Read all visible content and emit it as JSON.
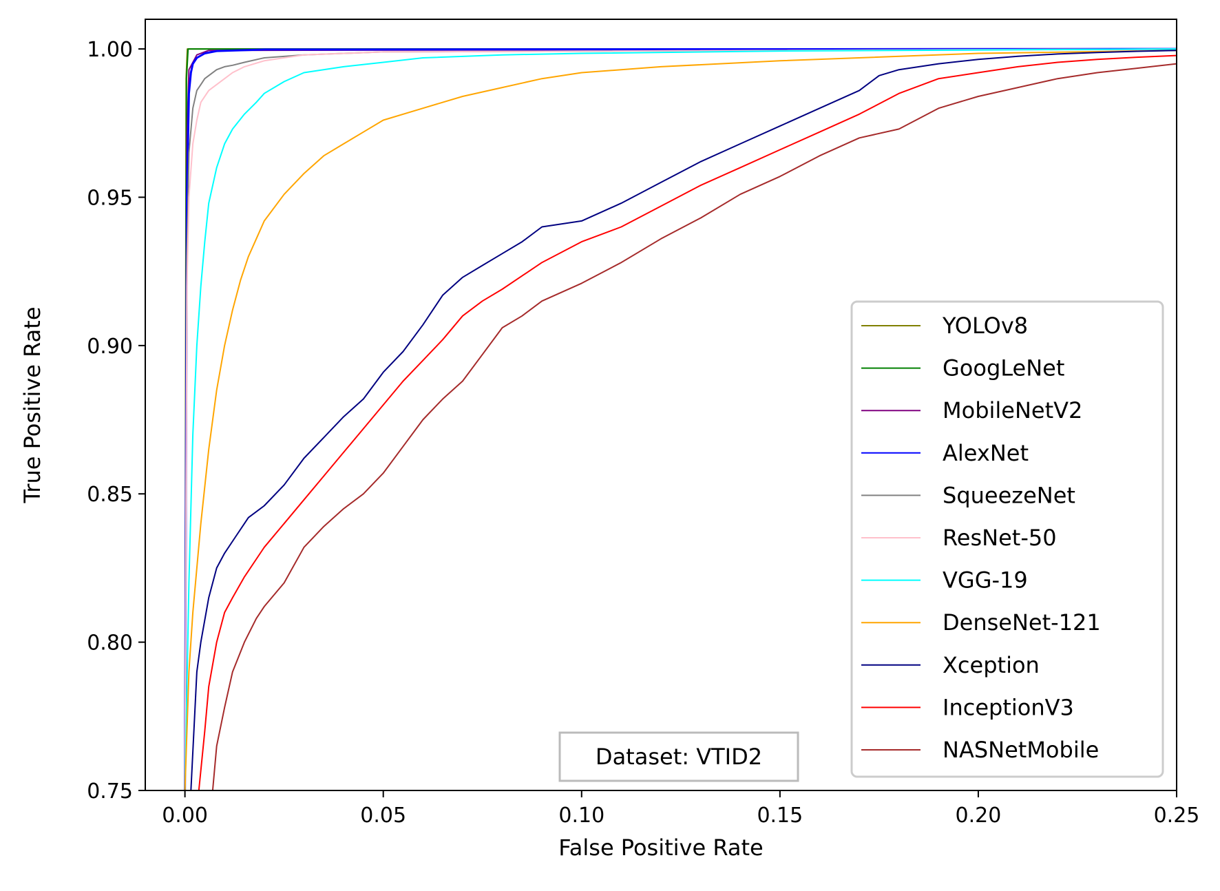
{
  "chart_data": {
    "type": "line",
    "xlabel": "False Positive Rate",
    "ylabel": "True Positive Rate",
    "xlim": [
      -0.01,
      0.25
    ],
    "ylim": [
      0.75,
      1.01
    ],
    "xticks": [
      0.0,
      0.05,
      0.1,
      0.15,
      0.2,
      0.25
    ],
    "xtick_labels": [
      "0.00",
      "0.05",
      "0.10",
      "0.15",
      "0.20",
      "0.25"
    ],
    "yticks": [
      0.75,
      0.8,
      0.85,
      0.9,
      0.95,
      1.0
    ],
    "ytick_labels": [
      "0.75",
      "0.80",
      "0.85",
      "0.90",
      "0.95",
      "1.00"
    ],
    "grid": false,
    "legend_position": "center-right",
    "annotation": "Dataset: VTID2",
    "series": [
      {
        "name": "YOLOv8",
        "color": "#808000",
        "x": [
          0.0,
          0.0003,
          0.0006,
          0.25
        ],
        "y": [
          0.75,
          0.99,
          1.0,
          1.0
        ]
      },
      {
        "name": "GoogLeNet",
        "color": "#008000",
        "x": [
          0.0,
          0.0004,
          0.0008,
          0.25
        ],
        "y": [
          0.75,
          0.99,
          1.0,
          1.0
        ]
      },
      {
        "name": "MobileNetV2",
        "color": "#800080",
        "x": [
          0.0,
          0.0005,
          0.001,
          0.003,
          0.006,
          0.25
        ],
        "y": [
          0.75,
          0.97,
          0.993,
          0.998,
          0.9995,
          1.0
        ]
      },
      {
        "name": "AlexNet",
        "color": "#0000ff",
        "x": [
          0.0,
          0.0005,
          0.001,
          0.0015,
          0.002,
          0.003,
          0.005,
          0.008,
          0.02,
          0.25
        ],
        "y": [
          0.75,
          0.95,
          0.985,
          0.992,
          0.995,
          0.997,
          0.9985,
          0.9993,
          0.9998,
          1.0
        ]
      },
      {
        "name": "SqueezeNet",
        "color": "#808080",
        "x": [
          0.0,
          0.0005,
          0.001,
          0.002,
          0.003,
          0.004,
          0.005,
          0.006,
          0.008,
          0.01,
          0.012,
          0.015,
          0.02,
          0.03,
          0.05,
          0.25
        ],
        "y": [
          0.75,
          0.93,
          0.965,
          0.98,
          0.986,
          0.988,
          0.99,
          0.991,
          0.993,
          0.994,
          0.9945,
          0.9955,
          0.997,
          0.998,
          0.999,
          1.0
        ]
      },
      {
        "name": "ResNet-50",
        "color": "#ffc0cb",
        "x": [
          0.0,
          0.0005,
          0.001,
          0.002,
          0.003,
          0.004,
          0.006,
          0.008,
          0.01,
          0.012,
          0.015,
          0.02,
          0.03,
          0.05,
          0.25
        ],
        "y": [
          0.75,
          0.92,
          0.95,
          0.968,
          0.976,
          0.982,
          0.986,
          0.988,
          0.99,
          0.992,
          0.994,
          0.996,
          0.998,
          0.999,
          1.0
        ]
      },
      {
        "name": "VGG-19",
        "color": "#00ffff",
        "x": [
          0.0,
          0.001,
          0.002,
          0.003,
          0.004,
          0.005,
          0.006,
          0.008,
          0.01,
          0.012,
          0.015,
          0.018,
          0.02,
          0.025,
          0.03,
          0.04,
          0.05,
          0.06,
          0.08,
          0.1,
          0.15,
          0.25
        ],
        "y": [
          0.75,
          0.82,
          0.87,
          0.9,
          0.92,
          0.935,
          0.948,
          0.96,
          0.968,
          0.973,
          0.978,
          0.982,
          0.985,
          0.989,
          0.992,
          0.994,
          0.9955,
          0.997,
          0.998,
          0.9985,
          0.9993,
          1.0
        ]
      },
      {
        "name": "DenseNet-121",
        "color": "#ffa500",
        "x": [
          0.0,
          0.001,
          0.002,
          0.004,
          0.006,
          0.008,
          0.01,
          0.012,
          0.014,
          0.016,
          0.018,
          0.02,
          0.025,
          0.03,
          0.035,
          0.04,
          0.045,
          0.05,
          0.06,
          0.07,
          0.08,
          0.09,
          0.1,
          0.12,
          0.15,
          0.2,
          0.25
        ],
        "y": [
          0.75,
          0.79,
          0.81,
          0.84,
          0.865,
          0.885,
          0.9,
          0.912,
          0.922,
          0.93,
          0.936,
          0.942,
          0.951,
          0.958,
          0.964,
          0.968,
          0.972,
          0.976,
          0.98,
          0.984,
          0.987,
          0.99,
          0.992,
          0.994,
          0.996,
          0.9985,
          0.9995
        ]
      },
      {
        "name": "Xception",
        "color": "#000080",
        "x": [
          0.0015,
          0.003,
          0.004,
          0.006,
          0.008,
          0.01,
          0.013,
          0.016,
          0.02,
          0.025,
          0.03,
          0.035,
          0.04,
          0.045,
          0.05,
          0.055,
          0.06,
          0.065,
          0.07,
          0.075,
          0.08,
          0.085,
          0.09,
          0.1,
          0.11,
          0.12,
          0.13,
          0.14,
          0.15,
          0.16,
          0.17,
          0.175,
          0.18,
          0.19,
          0.2,
          0.21,
          0.22,
          0.23,
          0.24,
          0.25
        ],
        "y": [
          0.75,
          0.79,
          0.8,
          0.815,
          0.825,
          0.83,
          0.836,
          0.842,
          0.846,
          0.853,
          0.862,
          0.869,
          0.876,
          0.882,
          0.891,
          0.898,
          0.907,
          0.917,
          0.923,
          0.927,
          0.931,
          0.935,
          0.94,
          0.942,
          0.948,
          0.955,
          0.962,
          0.968,
          0.974,
          0.98,
          0.986,
          0.991,
          0.993,
          0.995,
          0.9965,
          0.9975,
          0.9983,
          0.9988,
          0.9992,
          0.9995
        ]
      },
      {
        "name": "InceptionV3",
        "color": "#ff0000",
        "x": [
          0.0035,
          0.005,
          0.006,
          0.008,
          0.01,
          0.012,
          0.015,
          0.018,
          0.02,
          0.025,
          0.03,
          0.035,
          0.04,
          0.045,
          0.05,
          0.055,
          0.06,
          0.065,
          0.07,
          0.075,
          0.08,
          0.09,
          0.1,
          0.11,
          0.12,
          0.13,
          0.14,
          0.15,
          0.16,
          0.17,
          0.18,
          0.19,
          0.2,
          0.21,
          0.22,
          0.23,
          0.24,
          0.25
        ],
        "y": [
          0.75,
          0.77,
          0.785,
          0.8,
          0.81,
          0.815,
          0.822,
          0.828,
          0.832,
          0.84,
          0.848,
          0.856,
          0.864,
          0.872,
          0.88,
          0.888,
          0.895,
          0.902,
          0.91,
          0.915,
          0.919,
          0.928,
          0.935,
          0.94,
          0.947,
          0.954,
          0.96,
          0.966,
          0.972,
          0.978,
          0.985,
          0.99,
          0.992,
          0.994,
          0.9955,
          0.9965,
          0.9972,
          0.9978
        ]
      },
      {
        "name": "NASNetMobile",
        "color": "#a52a2a",
        "x": [
          0.007,
          0.008,
          0.01,
          0.012,
          0.015,
          0.018,
          0.02,
          0.025,
          0.03,
          0.035,
          0.04,
          0.045,
          0.05,
          0.055,
          0.06,
          0.065,
          0.07,
          0.075,
          0.08,
          0.085,
          0.09,
          0.1,
          0.11,
          0.12,
          0.13,
          0.14,
          0.15,
          0.16,
          0.17,
          0.18,
          0.19,
          0.2,
          0.21,
          0.22,
          0.23,
          0.24,
          0.25
        ],
        "y": [
          0.75,
          0.765,
          0.778,
          0.79,
          0.8,
          0.808,
          0.812,
          0.82,
          0.832,
          0.839,
          0.845,
          0.85,
          0.857,
          0.866,
          0.875,
          0.882,
          0.888,
          0.897,
          0.906,
          0.91,
          0.915,
          0.921,
          0.928,
          0.936,
          0.943,
          0.951,
          0.957,
          0.964,
          0.97,
          0.973,
          0.98,
          0.984,
          0.987,
          0.99,
          0.992,
          0.9935,
          0.995
        ]
      }
    ]
  }
}
